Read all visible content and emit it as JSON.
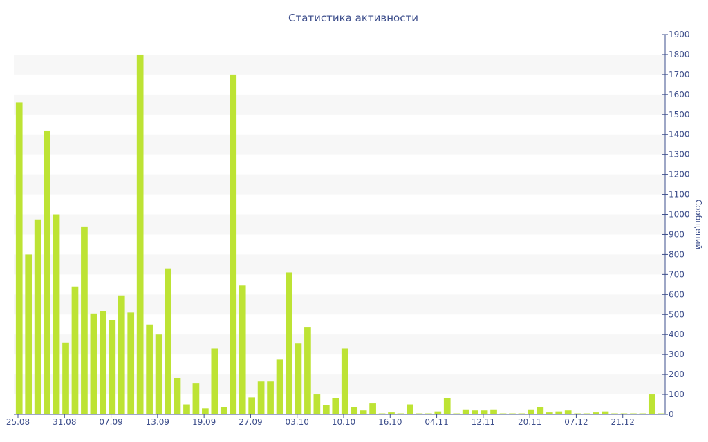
{
  "chart_data": {
    "type": "bar",
    "title": "Статистика активности",
    "xlabel": "",
    "ylabel": "Сообщений",
    "ylim": [
      0,
      1900
    ],
    "y_ticks": [
      0,
      100,
      200,
      300,
      400,
      500,
      600,
      700,
      800,
      900,
      1000,
      1100,
      1200,
      1300,
      1400,
      1500,
      1600,
      1700,
      1800,
      1900
    ],
    "y_axis_side": "right",
    "x_tick_labels": [
      {
        "index": 0,
        "label": "25.08"
      },
      {
        "index": 5,
        "label": "31.08"
      },
      {
        "index": 10,
        "label": "07.09"
      },
      {
        "index": 15,
        "label": "13.09"
      },
      {
        "index": 20,
        "label": "19.09"
      },
      {
        "index": 25,
        "label": "27.09"
      },
      {
        "index": 30,
        "label": "03.10"
      },
      {
        "index": 35,
        "label": "10.10"
      },
      {
        "index": 40,
        "label": "16.10"
      },
      {
        "index": 45,
        "label": "04.11"
      },
      {
        "index": 50,
        "label": "12.11"
      },
      {
        "index": 55,
        "label": "20.11"
      },
      {
        "index": 60,
        "label": "07.12"
      },
      {
        "index": 65,
        "label": "21.12"
      }
    ],
    "values": [
      1560,
      800,
      975,
      1420,
      1000,
      360,
      640,
      940,
      505,
      515,
      470,
      595,
      510,
      1800,
      450,
      400,
      730,
      180,
      50,
      155,
      30,
      330,
      35,
      1700,
      645,
      85,
      165,
      165,
      275,
      710,
      355,
      435,
      100,
      45,
      80,
      330,
      35,
      20,
      55,
      5,
      10,
      5,
      50,
      5,
      5,
      15,
      80,
      5,
      25,
      20,
      20,
      25,
      5,
      5,
      5,
      25,
      35,
      10,
      15,
      20,
      5,
      5,
      10,
      15,
      5,
      5,
      5,
      5,
      100,
      5
    ],
    "grid": "horizontal bands",
    "colors": {
      "bar": "#bde334",
      "band": "#f7f7f7",
      "axis": "#3e4f8c",
      "text": "#3e4f8c"
    }
  }
}
